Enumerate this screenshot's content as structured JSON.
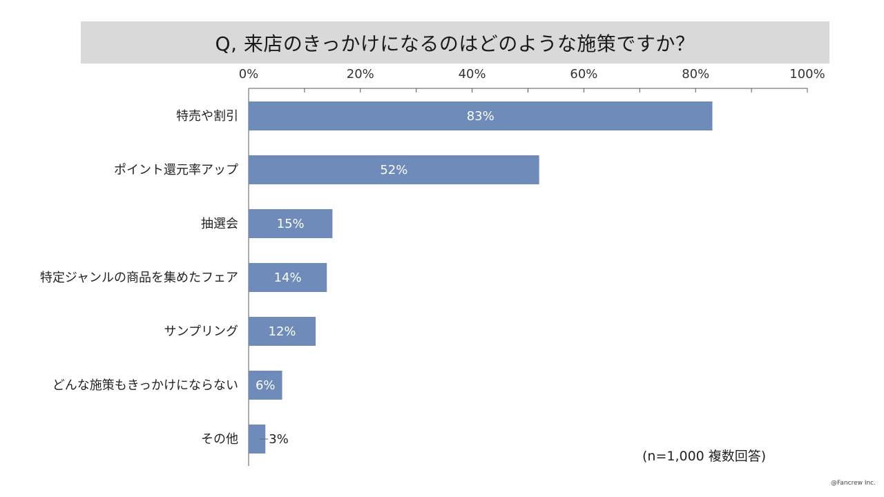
{
  "title": "Q, 来店のきっかけになるのはどのような施策ですか？",
  "note": "(n=1,000 複数回答)",
  "credit": "@Fancrew Inc.",
  "colors": {
    "bar": "#6e8bba",
    "title_bg": "#d9d9d9",
    "axis": "#555555"
  },
  "chart_data": {
    "type": "bar",
    "orientation": "horizontal",
    "title": "Q, 来店のきっかけになるのはどのような施策ですか？",
    "xlabel": "",
    "ylabel": "",
    "xlim": [
      0,
      100
    ],
    "x_ticks": [
      0,
      20,
      40,
      60,
      80,
      100
    ],
    "x_tick_labels": [
      "0%",
      "20%",
      "40%",
      "60%",
      "80%",
      "100%"
    ],
    "categories": [
      "特売や割引",
      "ポイント還元率アップ",
      "抽選会",
      "特定ジャンルの商品を集めたフェア",
      "サンプリング",
      "どんな施策もきっかけにならない",
      "その他"
    ],
    "values": [
      83,
      52,
      15,
      14,
      12,
      6,
      3
    ],
    "data_labels": [
      "83%",
      "52%",
      "15%",
      "14%",
      "12%",
      "6%",
      "3%"
    ],
    "axis_position": "top",
    "grid": false
  }
}
